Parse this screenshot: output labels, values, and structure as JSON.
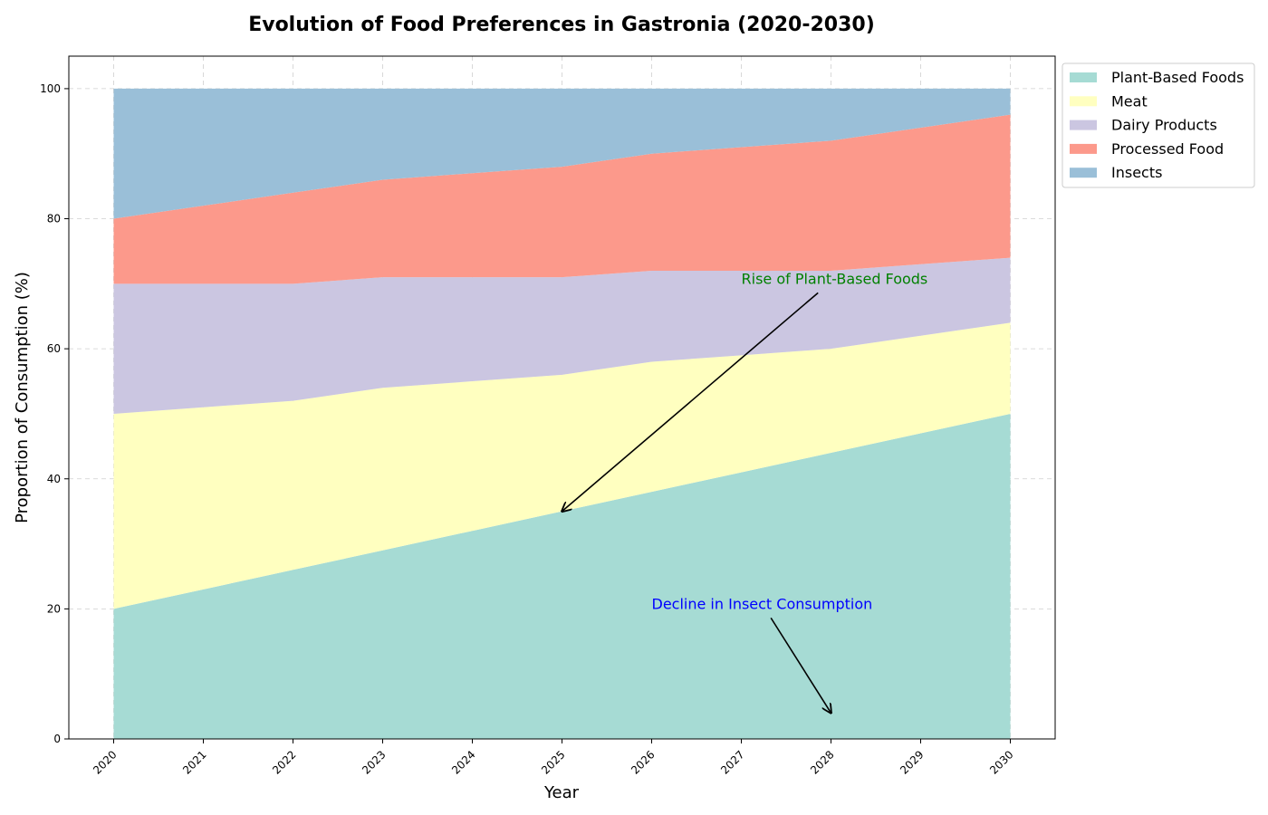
{
  "chart_data": {
    "type": "area",
    "stacked": true,
    "title": "Evolution of Food Preferences in Gastronia (2020-2030)",
    "xlabel": "Year",
    "ylabel": "Proportion of Consumption (%)",
    "x": [
      "2020",
      "2021",
      "2022",
      "2023",
      "2024",
      "2025",
      "2026",
      "2027",
      "2028",
      "2029",
      "2030"
    ],
    "ylim": [
      0,
      105
    ],
    "yticks": [
      0,
      20,
      40,
      60,
      80,
      100
    ],
    "grid": true,
    "legend_position": "outside-top-right",
    "series": [
      {
        "name": "Plant-Based Foods",
        "color": "#a6dbd4",
        "values": [
          20,
          23,
          26,
          29,
          32,
          35,
          38,
          41,
          44,
          47,
          50
        ]
      },
      {
        "name": "Meat",
        "color": "#ffffc0",
        "values": [
          30,
          28,
          26,
          25,
          23,
          21,
          20,
          18,
          16,
          15,
          14
        ]
      },
      {
        "name": "Dairy Products",
        "color": "#cbc6e1",
        "values": [
          20,
          19,
          18,
          17,
          16,
          15,
          14,
          13,
          12,
          11,
          10
        ]
      },
      {
        "name": "Processed Food",
        "color": "#fc998b",
        "values": [
          10,
          12,
          14,
          15,
          16,
          17,
          18,
          19,
          20,
          21,
          22
        ]
      },
      {
        "name": "Insects",
        "color": "#9abfd8",
        "values": [
          20,
          18,
          16,
          14,
          13,
          12,
          10,
          9,
          8,
          6,
          4
        ]
      }
    ],
    "annotations": [
      {
        "text": "Rise of Plant-Based Foods",
        "color": "#008000",
        "text_x": 2027,
        "text_y": 70,
        "arrow_x": 2025,
        "arrow_y": 35
      },
      {
        "text": "Decline in Insect Consumption",
        "color": "#0000ff",
        "text_x": 2026,
        "text_y": 20,
        "arrow_x": 2028,
        "arrow_y": 4
      }
    ]
  }
}
